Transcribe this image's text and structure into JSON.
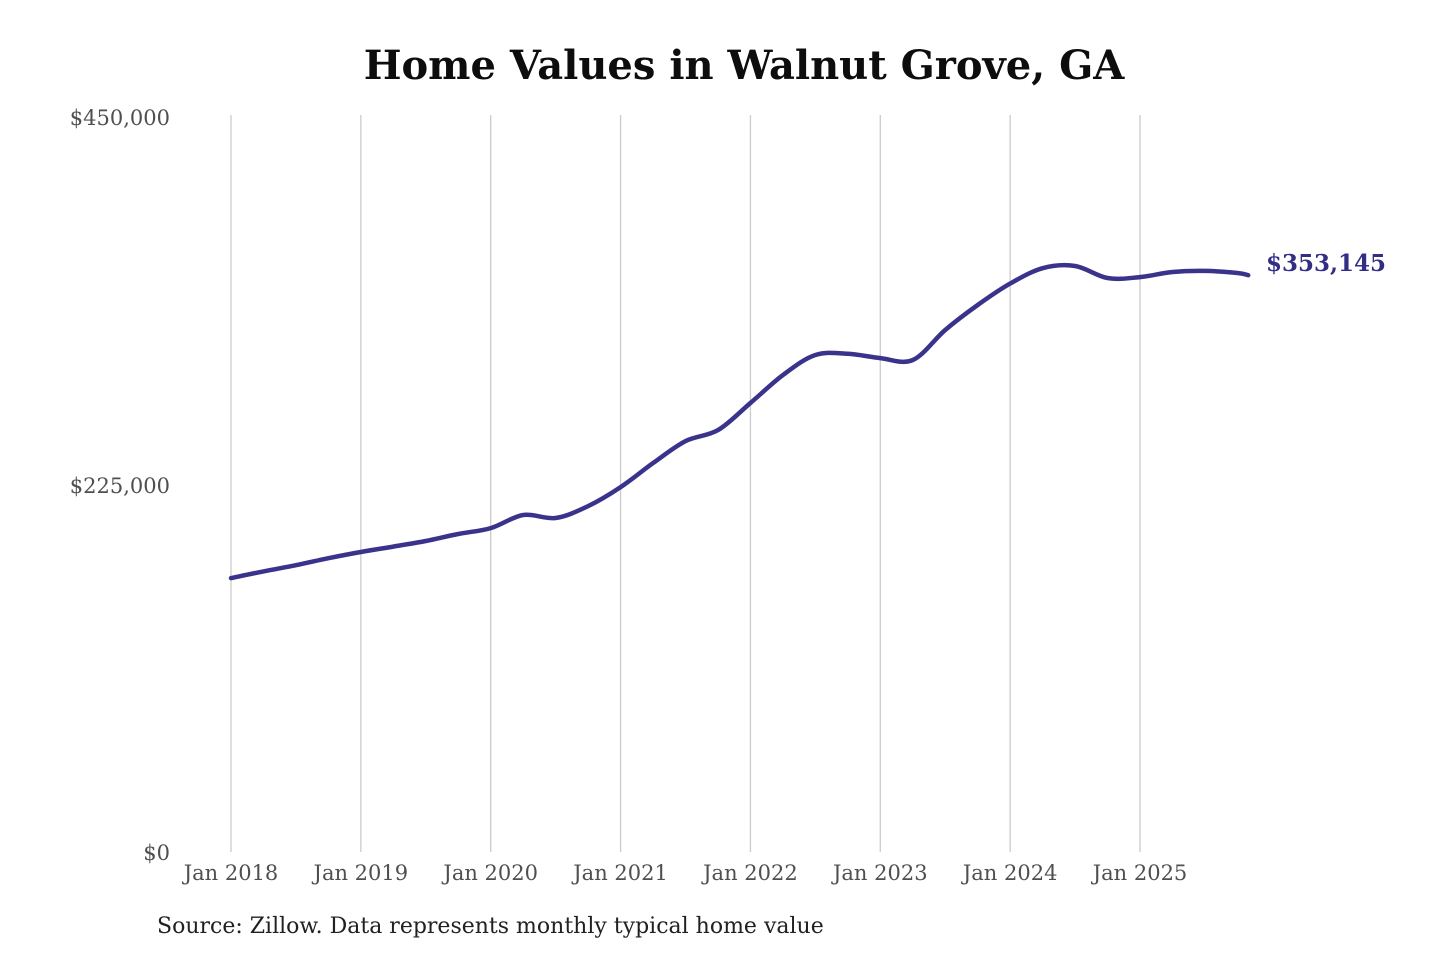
{
  "chart": {
    "title": "Home Values in Walnut Grove, GA",
    "source_note": "Source: Zillow. Data represents monthly typical home value",
    "final_value_label": "$353,145"
  },
  "colors": {
    "background": "#ffffff",
    "line": "#3a338c",
    "annotation": "#322e86",
    "gridline": "#cbcbcb",
    "tick_label": "#4f4f4f",
    "title": "#0d0d0d",
    "source_text": "#212121"
  },
  "chart_data": {
    "type": "line",
    "title": "Home Values in Walnut Grove, GA",
    "xlabel": "",
    "ylabel": "",
    "ylim": [
      0,
      450000
    ],
    "yticks": [
      {
        "label": "$0",
        "value": 0
      },
      {
        "label": "$225,000",
        "value": 225000
      },
      {
        "label": "$450,000",
        "value": 450000
      }
    ],
    "xticks": [
      "Jan 2018",
      "Jan 2019",
      "Jan 2020",
      "Jan 2021",
      "Jan 2022",
      "Jan 2023",
      "Jan 2024",
      "Jan 2025"
    ],
    "grid": "vertical-only",
    "legend": "none",
    "annotation": {
      "text": "$353,145",
      "at": "Nov 2025"
    },
    "source": "Source: Zillow. Data represents monthly typical home value",
    "series": [
      {
        "name": "Typical home value",
        "points": [
          [
            "Jan 2018",
            167700
          ],
          [
            "Apr 2018",
            171800
          ],
          [
            "Jul 2018",
            175600
          ],
          [
            "Oct 2018",
            179900
          ],
          [
            "Jan 2019",
            183700
          ],
          [
            "Apr 2019",
            187000
          ],
          [
            "Jul 2019",
            190400
          ],
          [
            "Oct 2019",
            194700
          ],
          [
            "Jan 2020",
            198300
          ],
          [
            "Apr 2020",
            206300
          ],
          [
            "Jul 2020",
            204500
          ],
          [
            "Oct 2020",
            211800
          ],
          [
            "Jan 2021",
            223400
          ],
          [
            "Apr 2021",
            238100
          ],
          [
            "Jul 2021",
            251600
          ],
          [
            "Oct 2021",
            258300
          ],
          [
            "Jan 2022",
            274900
          ],
          [
            "Apr 2022",
            292000
          ],
          [
            "Jul 2022",
            304300
          ],
          [
            "Oct 2022",
            305000
          ],
          [
            "Jan 2023",
            302400
          ],
          [
            "Apr 2023",
            301200
          ],
          [
            "Jul 2023",
            319600
          ],
          [
            "Oct 2023",
            334900
          ],
          [
            "Jan 2024",
            348000
          ],
          [
            "Apr 2024",
            357400
          ],
          [
            "Jul 2024",
            358800
          ],
          [
            "Oct 2024",
            351400
          ],
          [
            "Jan 2025",
            352000
          ],
          [
            "Apr 2025",
            355100
          ],
          [
            "Jul 2025",
            355800
          ],
          [
            "Oct 2025",
            354500
          ],
          [
            "Nov 2025",
            353145
          ]
        ]
      }
    ]
  }
}
